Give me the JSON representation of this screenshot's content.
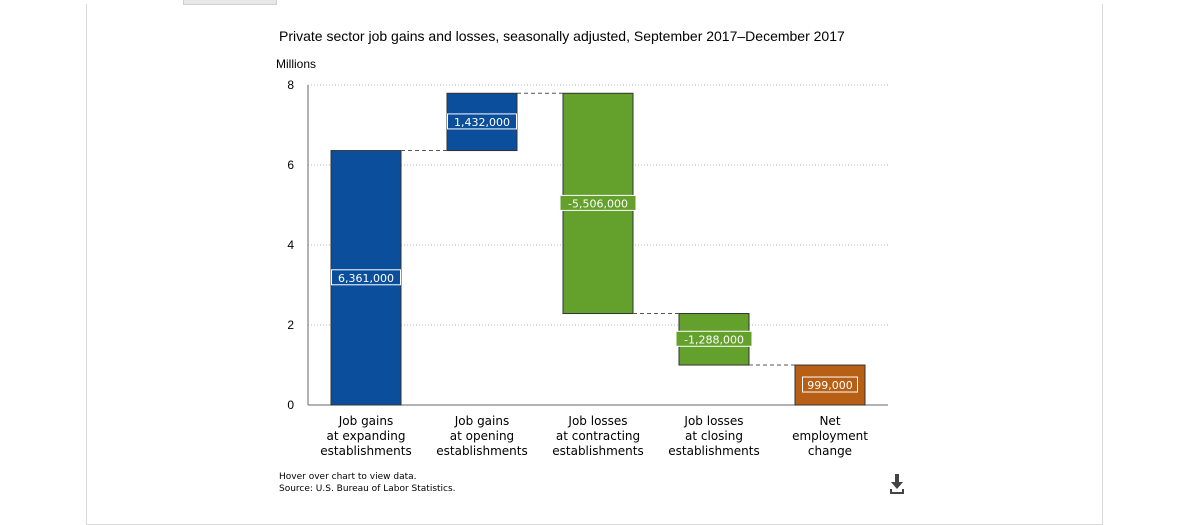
{
  "chart_data": {
    "type": "bar",
    "subtype": "waterfall",
    "title": "Private sector job gains and losses, seasonally adjusted, September 2017–December 2017",
    "ylabel": "Millions",
    "ylim": [
      0,
      8
    ],
    "yticks": [
      "0",
      "2",
      "4",
      "6",
      "8"
    ],
    "categories": [
      [
        "Job gains",
        "at expanding",
        "establishments"
      ],
      [
        "Job gains",
        "at opening",
        "establishments"
      ],
      [
        "Job losses",
        "at contracting",
        "establishments"
      ],
      [
        "Job losses",
        "at closing",
        "establishments"
      ],
      [
        "Net",
        "employment",
        "change"
      ]
    ],
    "values": [
      6361000,
      1432000,
      -5506000,
      -1288000,
      999000
    ],
    "data_labels": [
      "6,361,000",
      "1,432,000",
      "-5,506,000",
      "-1,288,000",
      "999,000"
    ],
    "colors": [
      "#0b4f9c",
      "#0b4f9c",
      "#63a02c",
      "#63a02c",
      "#b75f14"
    ],
    "grid": true
  },
  "notes": {
    "hover": "Hover over chart to view data.",
    "source": "Source: U.S. Bureau of Labor Statistics."
  },
  "download_icon": "download-icon"
}
